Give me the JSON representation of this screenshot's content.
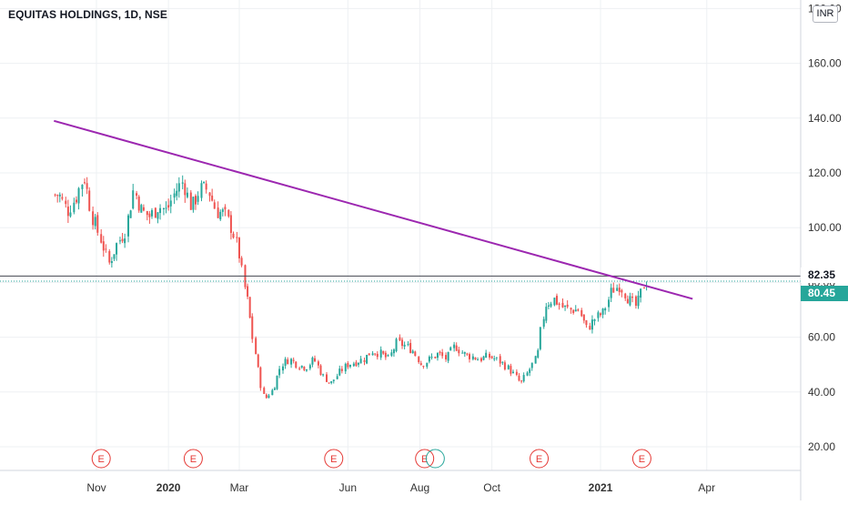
{
  "header": {
    "title": "EQUITAS HOLDINGS, 1D, NSE",
    "currency": "INR"
  },
  "price_tags": {
    "level_line": "82.35",
    "close": "80.45"
  },
  "events": {
    "label": "E"
  },
  "colors": {
    "up": "#26a69a",
    "down": "#ef5350",
    "trendline": "#9c27b0",
    "level_line": "#434651",
    "event": "#e53935",
    "dividend_marker": "#26a69a"
  },
  "chart_data": {
    "type": "candlestick",
    "title": "EQUITAS HOLDINGS, 1D, NSE",
    "x_ticks": [
      "Nov",
      "2020",
      "Mar",
      "Jun",
      "Aug",
      "Oct",
      "2021",
      "Apr"
    ],
    "bold_x_ticks": [
      "2020",
      "2021"
    ],
    "y_ticks": [
      20,
      40,
      60,
      80,
      100,
      120,
      140,
      160,
      180
    ],
    "y_tick_labels": [
      "20.00",
      "40.00",
      "60.00",
      "80.00",
      "100.00",
      "120.00",
      "140.00",
      "160.00",
      "180.00"
    ],
    "ylim": [
      20,
      180
    ],
    "grid": true,
    "series": [
      {
        "values": [
          [
            "2019-10-01",
            112
          ],
          [
            "2019-10-08",
            106
          ],
          [
            "2019-10-15",
            111
          ],
          [
            "2019-10-22",
            119
          ],
          [
            "2019-10-29",
            104
          ],
          [
            "2019-11-05",
            96
          ],
          [
            "2019-11-12",
            87
          ],
          [
            "2019-11-19",
            94
          ],
          [
            "2019-11-26",
            99
          ],
          [
            "2019-12-03",
            114
          ],
          [
            "2019-12-10",
            106
          ],
          [
            "2019-12-17",
            104
          ],
          [
            "2019-12-24",
            108
          ],
          [
            "2019-12-31",
            106
          ],
          [
            "2020-01-07",
            113
          ],
          [
            "2020-01-14",
            117
          ],
          [
            "2020-01-21",
            107
          ],
          [
            "2020-01-28",
            114
          ],
          [
            "2020-02-04",
            114
          ],
          [
            "2020-02-11",
            106
          ],
          [
            "2020-02-18",
            105
          ],
          [
            "2020-02-25",
            99
          ],
          [
            "2020-03-02",
            89
          ],
          [
            "2020-03-05",
            80
          ],
          [
            "2020-03-09",
            72
          ],
          [
            "2020-03-12",
            62
          ],
          [
            "2020-03-16",
            52
          ],
          [
            "2020-03-19",
            44
          ],
          [
            "2020-03-23",
            37
          ],
          [
            "2020-03-26",
            39
          ],
          [
            "2020-03-30",
            41
          ],
          [
            "2020-04-06",
            50
          ],
          [
            "2020-04-13",
            52
          ],
          [
            "2020-04-20",
            50
          ],
          [
            "2020-04-27",
            49
          ],
          [
            "2020-05-04",
            52
          ],
          [
            "2020-05-11",
            46
          ],
          [
            "2020-05-18",
            43
          ],
          [
            "2020-05-25",
            47
          ],
          [
            "2020-06-01",
            50
          ],
          [
            "2020-06-08",
            51
          ],
          [
            "2020-06-15",
            52
          ],
          [
            "2020-06-22",
            55
          ],
          [
            "2020-06-29",
            54
          ],
          [
            "2020-07-06",
            52
          ],
          [
            "2020-07-13",
            58
          ],
          [
            "2020-07-20",
            57
          ],
          [
            "2020-07-27",
            55
          ],
          [
            "2020-08-03",
            50
          ],
          [
            "2020-08-10",
            52
          ],
          [
            "2020-08-17",
            54
          ],
          [
            "2020-08-24",
            52
          ],
          [
            "2020-08-31",
            57
          ],
          [
            "2020-09-07",
            54
          ],
          [
            "2020-09-14",
            53
          ],
          [
            "2020-09-21",
            52
          ],
          [
            "2020-09-28",
            53
          ],
          [
            "2020-10-05",
            52
          ],
          [
            "2020-10-12",
            50
          ],
          [
            "2020-10-19",
            47
          ],
          [
            "2020-10-26",
            43
          ],
          [
            "2020-11-02",
            48
          ],
          [
            "2020-11-09",
            53
          ],
          [
            "2020-11-12",
            63
          ],
          [
            "2020-11-16",
            72
          ],
          [
            "2020-11-23",
            74
          ],
          [
            "2020-11-30",
            71
          ],
          [
            "2020-12-07",
            70
          ],
          [
            "2020-12-14",
            70
          ],
          [
            "2020-12-21",
            63
          ],
          [
            "2020-12-28",
            67
          ],
          [
            "2021-01-04",
            69
          ],
          [
            "2021-01-11",
            77
          ],
          [
            "2021-01-18",
            79
          ],
          [
            "2021-01-25",
            74
          ],
          [
            "2021-02-01",
            71
          ],
          [
            "2021-02-08",
            80.45
          ]
        ]
      }
    ],
    "trendline": {
      "start": [
        "2019-09-26",
        139
      ],
      "end": [
        "2021-03-20",
        74
      ]
    },
    "horizontal_line": 82.35,
    "close_price": 80.45,
    "event_markers": [
      "2019-11-05",
      "2020-01-22",
      "2020-05-20",
      "2020-08-05",
      "2020-11-10",
      "2021-02-05"
    ],
    "dividend_marker": "2020-08-14"
  }
}
